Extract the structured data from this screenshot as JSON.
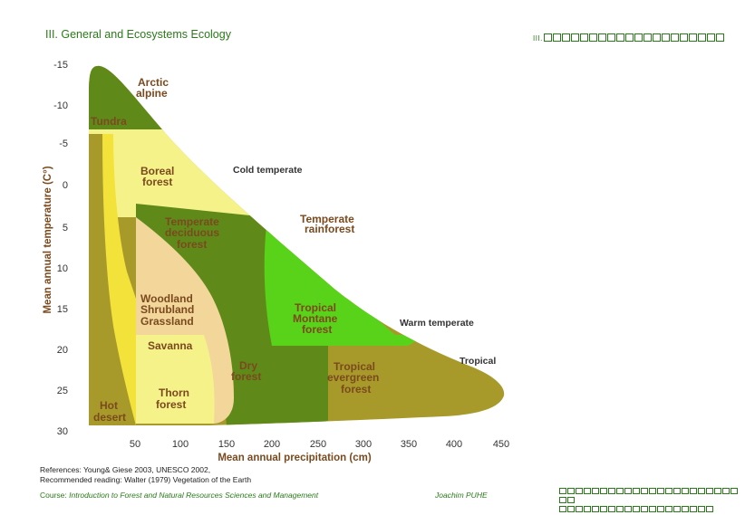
{
  "header": {
    "title": "III. General and Ecosystems Ecology",
    "right_label": "III."
  },
  "diagram": {
    "y_axis_label": "Mean annual temperature (C°)",
    "x_axis_label": "Mean annual precipitation (cm)",
    "y_ticks": [
      "-15",
      "-10",
      "-5",
      "0",
      "5",
      "10",
      "15",
      "20",
      "25",
      "30"
    ],
    "x_ticks": [
      "50",
      "100",
      "150",
      "200",
      "250",
      "300",
      "350",
      "400",
      "450"
    ],
    "biomes": {
      "arctic_alpine": [
        "Arctic",
        "alpine"
      ],
      "tundra": "Tundra",
      "boreal_forest": [
        "Boreal",
        "forest"
      ],
      "temperate_deciduous": [
        "Temperate",
        "deciduous",
        "forest"
      ],
      "woodland": [
        "Woodland",
        "Shrubland",
        "Grassland"
      ],
      "savanna": "Savanna",
      "thorn_forest": [
        "Thorn",
        "forest"
      ],
      "hot_desert": [
        "Hot",
        "desert"
      ],
      "dry_forest": [
        "Dry",
        "forest"
      ],
      "tropical_montane": [
        "Tropical",
        "Montane",
        "forest"
      ],
      "tropical_evergreen": [
        "Tropical",
        "evergreen",
        "forest"
      ],
      "temperate_rainforest": [
        "Temperate",
        "rainforest"
      ]
    },
    "zones": {
      "cold_temperate": "Cold temperate",
      "warm_temperate": "Warm temperate",
      "tropical": "Tropical"
    },
    "colors": {
      "dark_olive": "#5f8a1a",
      "olive_brown": "#a89a2a",
      "bright_green": "#59d21a",
      "pale_yellow": "#f6f28a",
      "yellow": "#f2e23a",
      "peach": "#f2d69a",
      "text_brown": "#7a4a1e",
      "header_green": "#2a7a1a"
    }
  },
  "footer": {
    "references_line1": "References: Young& Giese 2003, UNESCO 2002,",
    "references_line2": "Recommended reading:  Walter (1979) Vegetation of the Earth",
    "course_prefix": "Course: ",
    "course_name": "Introduction to Forest and Natural Resources Sciences and Management",
    "author": "Joachim PUHE"
  }
}
